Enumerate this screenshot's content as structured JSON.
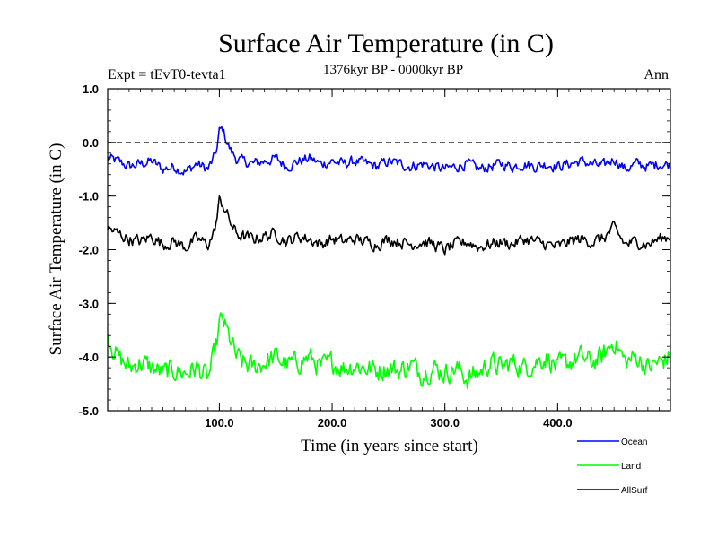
{
  "chart_data": {
    "type": "line",
    "title": "Surface Air Temperature (in C)",
    "subtitle": "1376kyr BP - 0000kyr BP",
    "experiment_label": "Expt = tEvT0-tevta1",
    "season_label": "Ann",
    "xlabel": "Time (in years since start)",
    "ylabel": "Surface Air Temperature (in C)",
    "xlim": [
      1,
      500
    ],
    "ylim": [
      -5.0,
      1.0
    ],
    "x_ticks": [
      {
        "value": 100,
        "label": "100.0"
      },
      {
        "value": 200,
        "label": "200.0"
      },
      {
        "value": 300,
        "label": "300.0"
      },
      {
        "value": 400,
        "label": "400.0"
      }
    ],
    "y_ticks": [
      {
        "value": 1.0,
        "label": "1.0"
      },
      {
        "value": 0.0,
        "label": "0.0"
      },
      {
        "value": -1.0,
        "label": "-1.0"
      },
      {
        "value": -2.0,
        "label": "-2.0"
      },
      {
        "value": -3.0,
        "label": "-3.0"
      },
      {
        "value": -4.0,
        "label": "-4.0"
      },
      {
        "value": -5.0,
        "label": "-5.0"
      }
    ],
    "reference_line": {
      "value": 0.0,
      "style": "dashed"
    },
    "x": [
      1,
      10,
      20,
      30,
      40,
      50,
      60,
      70,
      80,
      90,
      95,
      98,
      100,
      103,
      106,
      110,
      115,
      120,
      130,
      140,
      150,
      160,
      170,
      180,
      190,
      200,
      210,
      220,
      230,
      240,
      250,
      260,
      270,
      280,
      290,
      300,
      310,
      320,
      330,
      340,
      350,
      360,
      370,
      380,
      390,
      400,
      410,
      420,
      430,
      440,
      450,
      460,
      470,
      480,
      490,
      500
    ],
    "series": [
      {
        "name": "Ocean",
        "color": "#0000ff",
        "values": [
          -0.3,
          -0.35,
          -0.45,
          -0.4,
          -0.35,
          -0.5,
          -0.45,
          -0.55,
          -0.4,
          -0.5,
          -0.3,
          -0.1,
          0.2,
          0.25,
          0.05,
          -0.15,
          -0.3,
          -0.35,
          -0.4,
          -0.35,
          -0.3,
          -0.45,
          -0.35,
          -0.3,
          -0.4,
          -0.35,
          -0.4,
          -0.35,
          -0.4,
          -0.45,
          -0.35,
          -0.4,
          -0.45,
          -0.4,
          -0.45,
          -0.5,
          -0.45,
          -0.4,
          -0.5,
          -0.45,
          -0.4,
          -0.45,
          -0.4,
          -0.45,
          -0.4,
          -0.45,
          -0.4,
          -0.35,
          -0.4,
          -0.45,
          -0.3,
          -0.5,
          -0.4,
          -0.45,
          -0.4,
          -0.42
        ]
      },
      {
        "name": "Land",
        "color": "#00ff00",
        "values": [
          -3.6,
          -4.0,
          -4.2,
          -4.1,
          -4.2,
          -4.3,
          -4.25,
          -4.3,
          -4.2,
          -4.4,
          -4.0,
          -3.7,
          -3.4,
          -3.3,
          -3.5,
          -3.7,
          -4.0,
          -4.1,
          -4.2,
          -4.1,
          -4.0,
          -4.15,
          -4.1,
          -4.0,
          -4.2,
          -4.1,
          -4.2,
          -4.15,
          -4.2,
          -4.25,
          -4.2,
          -4.25,
          -4.15,
          -4.3,
          -4.2,
          -4.3,
          -4.2,
          -4.4,
          -4.3,
          -4.1,
          -4.2,
          -4.1,
          -4.2,
          -4.1,
          -4.0,
          -4.2,
          -4.1,
          -4.0,
          -4.1,
          -4.0,
          -3.7,
          -4.1,
          -4.0,
          -4.2,
          -4.1,
          -4.0
        ]
      },
      {
        "name": "AllSurf",
        "color": "#000000",
        "values": [
          -1.6,
          -1.7,
          -1.8,
          -1.85,
          -1.75,
          -1.9,
          -1.85,
          -1.95,
          -1.8,
          -1.9,
          -1.7,
          -1.4,
          -1.1,
          -1.15,
          -1.3,
          -1.5,
          -1.7,
          -1.75,
          -1.8,
          -1.75,
          -1.7,
          -1.85,
          -1.75,
          -1.8,
          -1.9,
          -1.8,
          -1.85,
          -1.8,
          -1.85,
          -1.9,
          -1.8,
          -1.85,
          -1.9,
          -1.85,
          -1.9,
          -2.0,
          -1.9,
          -1.85,
          -1.95,
          -1.9,
          -1.85,
          -1.9,
          -1.8,
          -1.85,
          -1.9,
          -1.95,
          -1.85,
          -1.8,
          -1.85,
          -1.8,
          -1.6,
          -1.9,
          -1.85,
          -1.9,
          -1.8,
          -1.75
        ]
      }
    ],
    "legend": [
      {
        "name": "Ocean",
        "color": "#0000ff"
      },
      {
        "name": "Land",
        "color": "#00ff00"
      },
      {
        "name": "AllSurf",
        "color": "#000000"
      }
    ],
    "legend_position": "bottom-right"
  }
}
